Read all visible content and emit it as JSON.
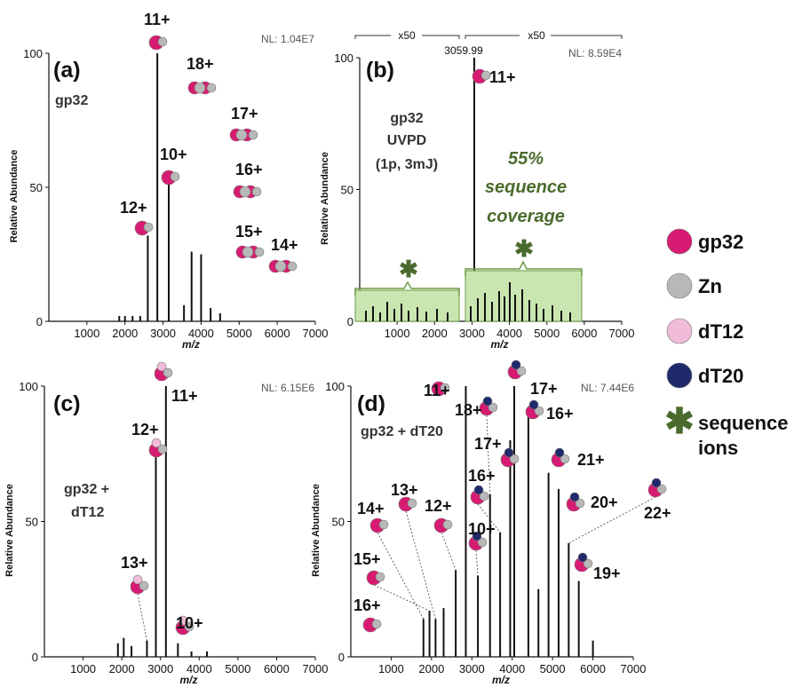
{
  "colors": {
    "gp32": "#d81b72",
    "zn": "#b8b8b8",
    "dT12": "#f0bcd8",
    "dT20": "#1f2a6b",
    "sequence_ions": "#4a6b2d",
    "coverage_fill": "#c9e6b0"
  },
  "legend": [
    {
      "label": "gp32",
      "marker": "gp32-circle"
    },
    {
      "label": "Zn",
      "marker": "zn-circle"
    },
    {
      "label": "dT12",
      "marker": "dt12-circle"
    },
    {
      "label": "dT20",
      "marker": "dt20-circle"
    },
    {
      "label": "sequence",
      "label2": "ions",
      "marker": "asterisk-icon"
    }
  ],
  "chart_data": [
    {
      "type": "bar",
      "panel": "(a)",
      "sample": "gp32",
      "nl": "NL: 1.04E7",
      "xlabel": "m/z",
      "ylabel": "Relative Abundance",
      "xlim": [
        0,
        7000
      ],
      "ylim": [
        0,
        100
      ],
      "xticks": [
        "1000",
        "2000",
        "3000",
        "4000",
        "5000",
        "6000",
        "7000"
      ],
      "yticks": [
        "0",
        "50",
        "100"
      ],
      "peaks": [
        {
          "x": 1850,
          "y": 2
        },
        {
          "x": 2000,
          "y": 2
        },
        {
          "x": 2200,
          "y": 2
        },
        {
          "x": 2400,
          "y": 2
        },
        {
          "x": 2600,
          "y": 32
        },
        {
          "x": 2850,
          "y": 100
        },
        {
          "x": 3150,
          "y": 52
        },
        {
          "x": 3550,
          "y": 6
        },
        {
          "x": 3750,
          "y": 26
        },
        {
          "x": 4000,
          "y": 25
        },
        {
          "x": 4250,
          "y": 5
        },
        {
          "x": 4500,
          "y": 3
        }
      ],
      "ions": [
        {
          "label": "11+",
          "x": 2850
        },
        {
          "label": "10+",
          "x": 3150
        },
        {
          "label": "12+",
          "x": 2600
        },
        {
          "label": "18+",
          "x": 3700
        },
        {
          "label": "17+",
          "x": 3900
        },
        {
          "label": "16+",
          "x": 4100
        },
        {
          "label": "15+",
          "x": 4350
        },
        {
          "label": "14+",
          "x": 4650
        }
      ]
    },
    {
      "type": "bar",
      "panel": "(b)",
      "sample": "gp32",
      "sample2": "UVPD",
      "sample3": "(1p, 3mJ)",
      "nl": "NL: 8.59E4",
      "xlabel": "m/z",
      "ylabel": "Relative Abundance",
      "xlim": [
        0,
        7000
      ],
      "ylim": [
        0,
        100
      ],
      "xticks": [
        "1000",
        "2000",
        "3000",
        "4000",
        "5000",
        "6000",
        "7000"
      ],
      "yticks": [
        "0",
        "50",
        "100"
      ],
      "precursor_mz": "3059.99",
      "precursor_ion": "11+",
      "zoom_left": "x50",
      "zoom_right": "x50",
      "coverage": "55%",
      "coverage2": "sequence",
      "coverage3": "coverage",
      "peaks": [
        {
          "x": 3060,
          "y": 100
        }
      ]
    },
    {
      "type": "bar",
      "panel": "(c)",
      "sample": "gp32 +",
      "sample2": "dT12",
      "nl": "NL: 6.15E6",
      "xlabel": "m/z",
      "ylabel": "Relative Abundance",
      "xlim": [
        0,
        7000
      ],
      "ylim": [
        0,
        100
      ],
      "xticks": [
        "1000",
        "2000",
        "3000",
        "4000",
        "5000",
        "6000",
        "7000"
      ],
      "yticks": [
        "0",
        "50",
        "100"
      ],
      "peaks": [
        {
          "x": 1900,
          "y": 5
        },
        {
          "x": 2050,
          "y": 7
        },
        {
          "x": 2250,
          "y": 4
        },
        {
          "x": 2650,
          "y": 6
        },
        {
          "x": 2880,
          "y": 75
        },
        {
          "x": 3140,
          "y": 100
        },
        {
          "x": 3450,
          "y": 5
        },
        {
          "x": 3800,
          "y": 2
        },
        {
          "x": 4200,
          "y": 2
        }
      ],
      "ions": [
        {
          "label": "11+",
          "x": 3140
        },
        {
          "label": "12+",
          "x": 2880
        },
        {
          "label": "13+",
          "x": 2650
        },
        {
          "label": "10+",
          "x": 3450
        }
      ]
    },
    {
      "type": "bar",
      "panel": "(d)",
      "sample": "gp32 + dT20",
      "nl": "NL: 7.44E6",
      "xlabel": "m/z",
      "ylabel": "Relative Abundance",
      "xlim": [
        0,
        7000
      ],
      "ylim": [
        0,
        100
      ],
      "xticks": [
        "1000",
        "2000",
        "3000",
        "4000",
        "5000",
        "6000",
        "7000"
      ],
      "yticks": [
        "0",
        "50",
        "100"
      ],
      "peaks": [
        {
          "x": 1800,
          "y": 14
        },
        {
          "x": 1950,
          "y": 17
        },
        {
          "x": 2100,
          "y": 14
        },
        {
          "x": 2300,
          "y": 18
        },
        {
          "x": 2600,
          "y": 32
        },
        {
          "x": 2850,
          "y": 100
        },
        {
          "x": 3150,
          "y": 30
        },
        {
          "x": 3450,
          "y": 60
        },
        {
          "x": 3700,
          "y": 46
        },
        {
          "x": 3950,
          "y": 80
        },
        {
          "x": 4050,
          "y": 100
        },
        {
          "x": 4400,
          "y": 90
        },
        {
          "x": 4650,
          "y": 25
        },
        {
          "x": 4900,
          "y": 68
        },
        {
          "x": 5150,
          "y": 62
        },
        {
          "x": 5400,
          "y": 42
        },
        {
          "x": 5650,
          "y": 28
        },
        {
          "x": 6000,
          "y": 6
        }
      ],
      "ions": [
        {
          "label": "11+",
          "x": 2850
        },
        {
          "label": "18+",
          "x": 3450
        },
        {
          "label": "17+",
          "x": 4050
        },
        {
          "label": "16+",
          "x": 4400
        },
        {
          "label": "17+",
          "x": 3950
        },
        {
          "label": "21+",
          "x": 4900
        },
        {
          "label": "16+",
          "x": 3700
        },
        {
          "label": "20+",
          "x": 5150
        },
        {
          "label": "22+",
          "x": 5400
        },
        {
          "label": "10+",
          "x": 3150
        },
        {
          "label": "19+",
          "x": 5650
        },
        {
          "label": "14+",
          "x": 1800
        },
        {
          "label": "13+",
          "x": 2100
        },
        {
          "label": "12+",
          "x": 2600
        },
        {
          "label": "15+",
          "x": 1950
        },
        {
          "label": "16+",
          "x": 2300
        }
      ]
    }
  ]
}
